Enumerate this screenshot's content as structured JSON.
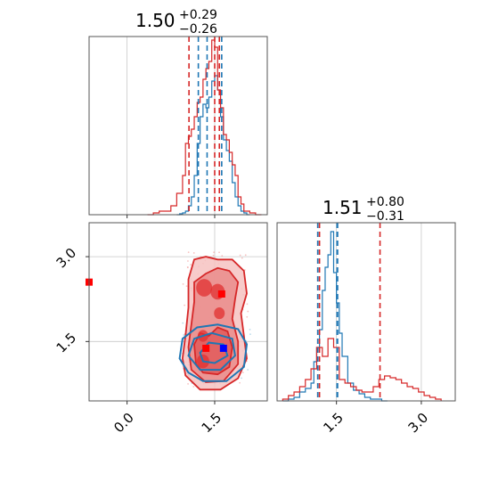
{
  "chart_data": {
    "type": "corner",
    "colors": {
      "blue": "#1f77b4",
      "red": "#d62728",
      "red_fill": "#f3b1b0",
      "red_fill_dark": "#e0605f",
      "marker_red": "#ff0000",
      "marker_blue": "#0000ff",
      "blue_scatter": "#9ecae1",
      "red_scatter": "#f4a9a8"
    },
    "x_range": [
      -0.65,
      2.4
    ],
    "y_range": [
      0.45,
      3.6
    ],
    "grid": true,
    "panels": [
      {
        "name": "top-left-histogram",
        "type": "histogram",
        "title": {
          "main": "1.50",
          "sup": "+0.29",
          "sub": "−0.26"
        },
        "xlim": [
          -0.65,
          2.4
        ],
        "ylim": [
          0,
          1
        ],
        "xticks": [
          0.0,
          1.5
        ],
        "quantiles_blue": [
          1.22,
          1.37,
          1.62
        ],
        "quantiles_red": [
          1.06,
          1.5,
          1.58
        ],
        "series": [
          {
            "name": "",
            "color": "blue",
            "bins": [
              0.85,
              0.9,
              0.95,
              1.0,
              1.05,
              1.1,
              1.15,
              1.2,
              1.25,
              1.3,
              1.35,
              1.4,
              1.45,
              1.5,
              1.55,
              1.6,
              1.65,
              1.7,
              1.75,
              1.8,
              1.85,
              1.9,
              1.95,
              2.0,
              2.05,
              2.1
            ],
            "heights": [
              0.0,
              0.005,
              0.01,
              0.02,
              0.05,
              0.1,
              0.22,
              0.4,
              0.55,
              0.62,
              0.6,
              0.66,
              0.75,
              0.78,
              0.7,
              0.55,
              0.42,
              0.36,
              0.3,
              0.18,
              0.1,
              0.05,
              0.02,
              0.01,
              0.0
            ]
          },
          {
            "name": "",
            "color": "red",
            "bins": [
              0.35,
              0.45,
              0.55,
              0.65,
              0.75,
              0.85,
              0.95,
              1.0,
              1.05,
              1.1,
              1.15,
              1.2,
              1.25,
              1.3,
              1.35,
              1.4,
              1.45,
              1.5,
              1.55,
              1.6,
              1.65,
              1.7,
              1.75,
              1.8,
              1.85,
              1.9,
              1.95,
              2.0,
              2.1,
              2.2,
              2.3
            ],
            "heights": [
              0.0,
              0.01,
              0.02,
              0.02,
              0.05,
              0.12,
              0.22,
              0.4,
              0.44,
              0.48,
              0.55,
              0.63,
              0.66,
              0.76,
              0.82,
              0.86,
              0.98,
              0.94,
              0.7,
              0.6,
              0.45,
              0.42,
              0.35,
              0.28,
              0.22,
              0.1,
              0.06,
              0.02,
              0.01,
              0.0
            ]
          }
        ]
      },
      {
        "name": "bottom-right-histogram",
        "type": "histogram",
        "title": {
          "main": "1.51",
          "sup": "+0.80",
          "sub": "−0.31"
        },
        "xlim": [
          0.45,
          3.6
        ],
        "ylim": [
          0,
          1
        ],
        "xticks": [
          1.5,
          3.0
        ],
        "xtick_labels": [
          "1.5",
          "3.0"
        ],
        "quantiles_blue": [
          1.17,
          1.51,
          1.52
        ],
        "quantiles_red": [
          1.17,
          1.2,
          2.27
        ],
        "series": [
          {
            "name": "",
            "color": "blue",
            "bins": [
              0.55,
              0.65,
              0.75,
              0.85,
              0.95,
              1.05,
              1.1,
              1.15,
              1.2,
              1.25,
              1.3,
              1.35,
              1.4,
              1.45,
              1.5,
              1.55,
              1.6,
              1.7,
              1.8,
              1.9,
              2.0,
              2.1,
              2.2,
              2.3,
              2.4
            ],
            "heights": [
              0.0,
              0.01,
              0.02,
              0.05,
              0.07,
              0.1,
              0.22,
              0.3,
              0.4,
              0.62,
              0.75,
              0.82,
              0.95,
              0.72,
              0.55,
              0.38,
              0.25,
              0.1,
              0.06,
              0.04,
              0.02,
              0.01,
              0.01,
              0.0
            ]
          },
          {
            "name": "",
            "color": "red",
            "bins": [
              0.55,
              0.65,
              0.75,
              0.85,
              0.95,
              1.05,
              1.15,
              1.25,
              1.35,
              1.45,
              1.55,
              1.65,
              1.75,
              1.85,
              1.95,
              2.05,
              2.15,
              2.25,
              2.35,
              2.45,
              2.55,
              2.65,
              2.75,
              2.85,
              2.95,
              3.05,
              3.15,
              3.25,
              3.35
            ],
            "heights": [
              0.01,
              0.03,
              0.05,
              0.08,
              0.12,
              0.18,
              0.3,
              0.25,
              0.35,
              0.3,
              0.12,
              0.1,
              0.08,
              0.06,
              0.05,
              0.05,
              0.08,
              0.12,
              0.14,
              0.13,
              0.12,
              0.1,
              0.08,
              0.07,
              0.05,
              0.03,
              0.02,
              0.01,
              0.0
            ]
          }
        ]
      },
      {
        "name": "bottom-left-2d",
        "type": "contour",
        "xlim": [
          -0.65,
          2.4
        ],
        "ylim": [
          0.45,
          3.6
        ],
        "xticks": [
          0.0,
          1.5
        ],
        "xtick_labels": [
          "0.0",
          "1.5"
        ],
        "yticks": [
          1.5,
          3.0
        ],
        "ytick_labels": [
          "1.5",
          "3.0"
        ],
        "markers": [
          {
            "color": "marker_red",
            "x": -0.65,
            "y": 2.55
          },
          {
            "color": "marker_red",
            "x": 1.62,
            "y": 2.34
          },
          {
            "color": "marker_red",
            "x": 1.35,
            "y": 1.38
          },
          {
            "color": "marker_blue",
            "x": 1.65,
            "y": 1.38
          }
        ],
        "red_contours": [
          {
            "level": "outer",
            "points": [
              [
                1.0,
                0.9
              ],
              [
                0.95,
                1.2
              ],
              [
                1.0,
                1.6
              ],
              [
                1.05,
                2.1
              ],
              [
                1.05,
                2.6
              ],
              [
                1.15,
                2.95
              ],
              [
                1.35,
                3.0
              ],
              [
                1.55,
                2.95
              ],
              [
                1.8,
                2.95
              ],
              [
                2.0,
                2.75
              ],
              [
                2.05,
                2.35
              ],
              [
                1.95,
                2.0
              ],
              [
                2.0,
                1.6
              ],
              [
                2.05,
                1.2
              ],
              [
                1.9,
                0.85
              ],
              [
                1.6,
                0.65
              ],
              [
                1.25,
                0.65
              ]
            ]
          },
          {
            "level": "middle",
            "points": [
              [
                1.1,
                1.0
              ],
              [
                1.05,
                1.4
              ],
              [
                1.1,
                1.8
              ],
              [
                1.15,
                2.2
              ],
              [
                1.15,
                2.55
              ],
              [
                1.35,
                2.7
              ],
              [
                1.55,
                2.8
              ],
              [
                1.75,
                2.75
              ],
              [
                1.9,
                2.55
              ],
              [
                1.85,
                2.25
              ],
              [
                1.8,
                1.9
              ],
              [
                1.9,
                1.5
              ],
              [
                1.9,
                1.1
              ],
              [
                1.65,
                0.8
              ],
              [
                1.35,
                0.78
              ]
            ]
          },
          {
            "level": "inner",
            "points": [
              [
                1.18,
                1.1
              ],
              [
                1.15,
                1.45
              ],
              [
                1.25,
                1.65
              ],
              [
                1.4,
                1.6
              ],
              [
                1.55,
                1.75
              ],
              [
                1.72,
                1.68
              ],
              [
                1.8,
                1.4
              ],
              [
                1.75,
                1.05
              ],
              [
                1.55,
                0.92
              ],
              [
                1.3,
                0.95
              ]
            ]
          }
        ],
        "blue_contours": [
          {
            "level": "outer",
            "points": [
              [
                0.9,
                1.2
              ],
              [
                0.95,
                1.55
              ],
              [
                1.2,
                1.75
              ],
              [
                1.55,
                1.8
              ],
              [
                1.9,
                1.72
              ],
              [
                2.05,
                1.45
              ],
              [
                2.0,
                1.05
              ],
              [
                1.7,
                0.8
              ],
              [
                1.3,
                0.8
              ],
              [
                1.05,
                0.95
              ]
            ]
          },
          {
            "level": "inner",
            "points": [
              [
                1.05,
                1.25
              ],
              [
                1.15,
                1.55
              ],
              [
                1.45,
                1.65
              ],
              [
                1.8,
                1.55
              ],
              [
                1.85,
                1.25
              ],
              [
                1.6,
                1.0
              ],
              [
                1.25,
                1.0
              ]
            ]
          },
          {
            "level": "core",
            "points": [
              [
                1.25,
                1.3
              ],
              [
                1.4,
                1.48
              ],
              [
                1.65,
                1.45
              ],
              [
                1.72,
                1.25
              ],
              [
                1.5,
                1.12
              ],
              [
                1.3,
                1.15
              ]
            ]
          }
        ]
      }
    ]
  }
}
